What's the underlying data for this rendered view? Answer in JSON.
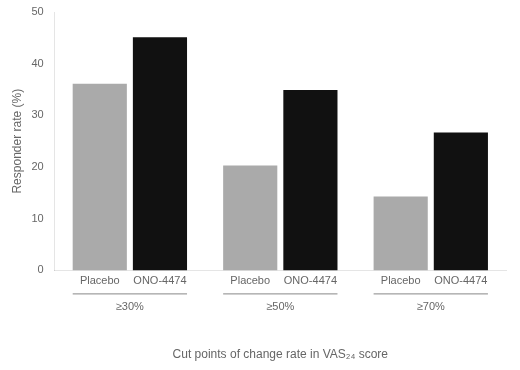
{
  "chart_data": {
    "type": "bar",
    "xlabel": "Cut points of change rate in VAS₂₄ score",
    "ylabel": "Responder rate (%)",
    "categories": [
      "≥30%",
      "≥50%",
      "≥70%"
    ],
    "series": [
      {
        "name": "Placebo",
        "color": "#aaaaaa",
        "values": [
          36.1,
          20.3,
          14.3
        ]
      },
      {
        "name": "ONO-4474",
        "color": "#111111",
        "values": [
          45.1,
          34.9,
          26.7
        ]
      }
    ],
    "ylim": [
      0,
      50
    ],
    "yticks": [
      0,
      10,
      20,
      30,
      40,
      50
    ],
    "grid": false
  }
}
